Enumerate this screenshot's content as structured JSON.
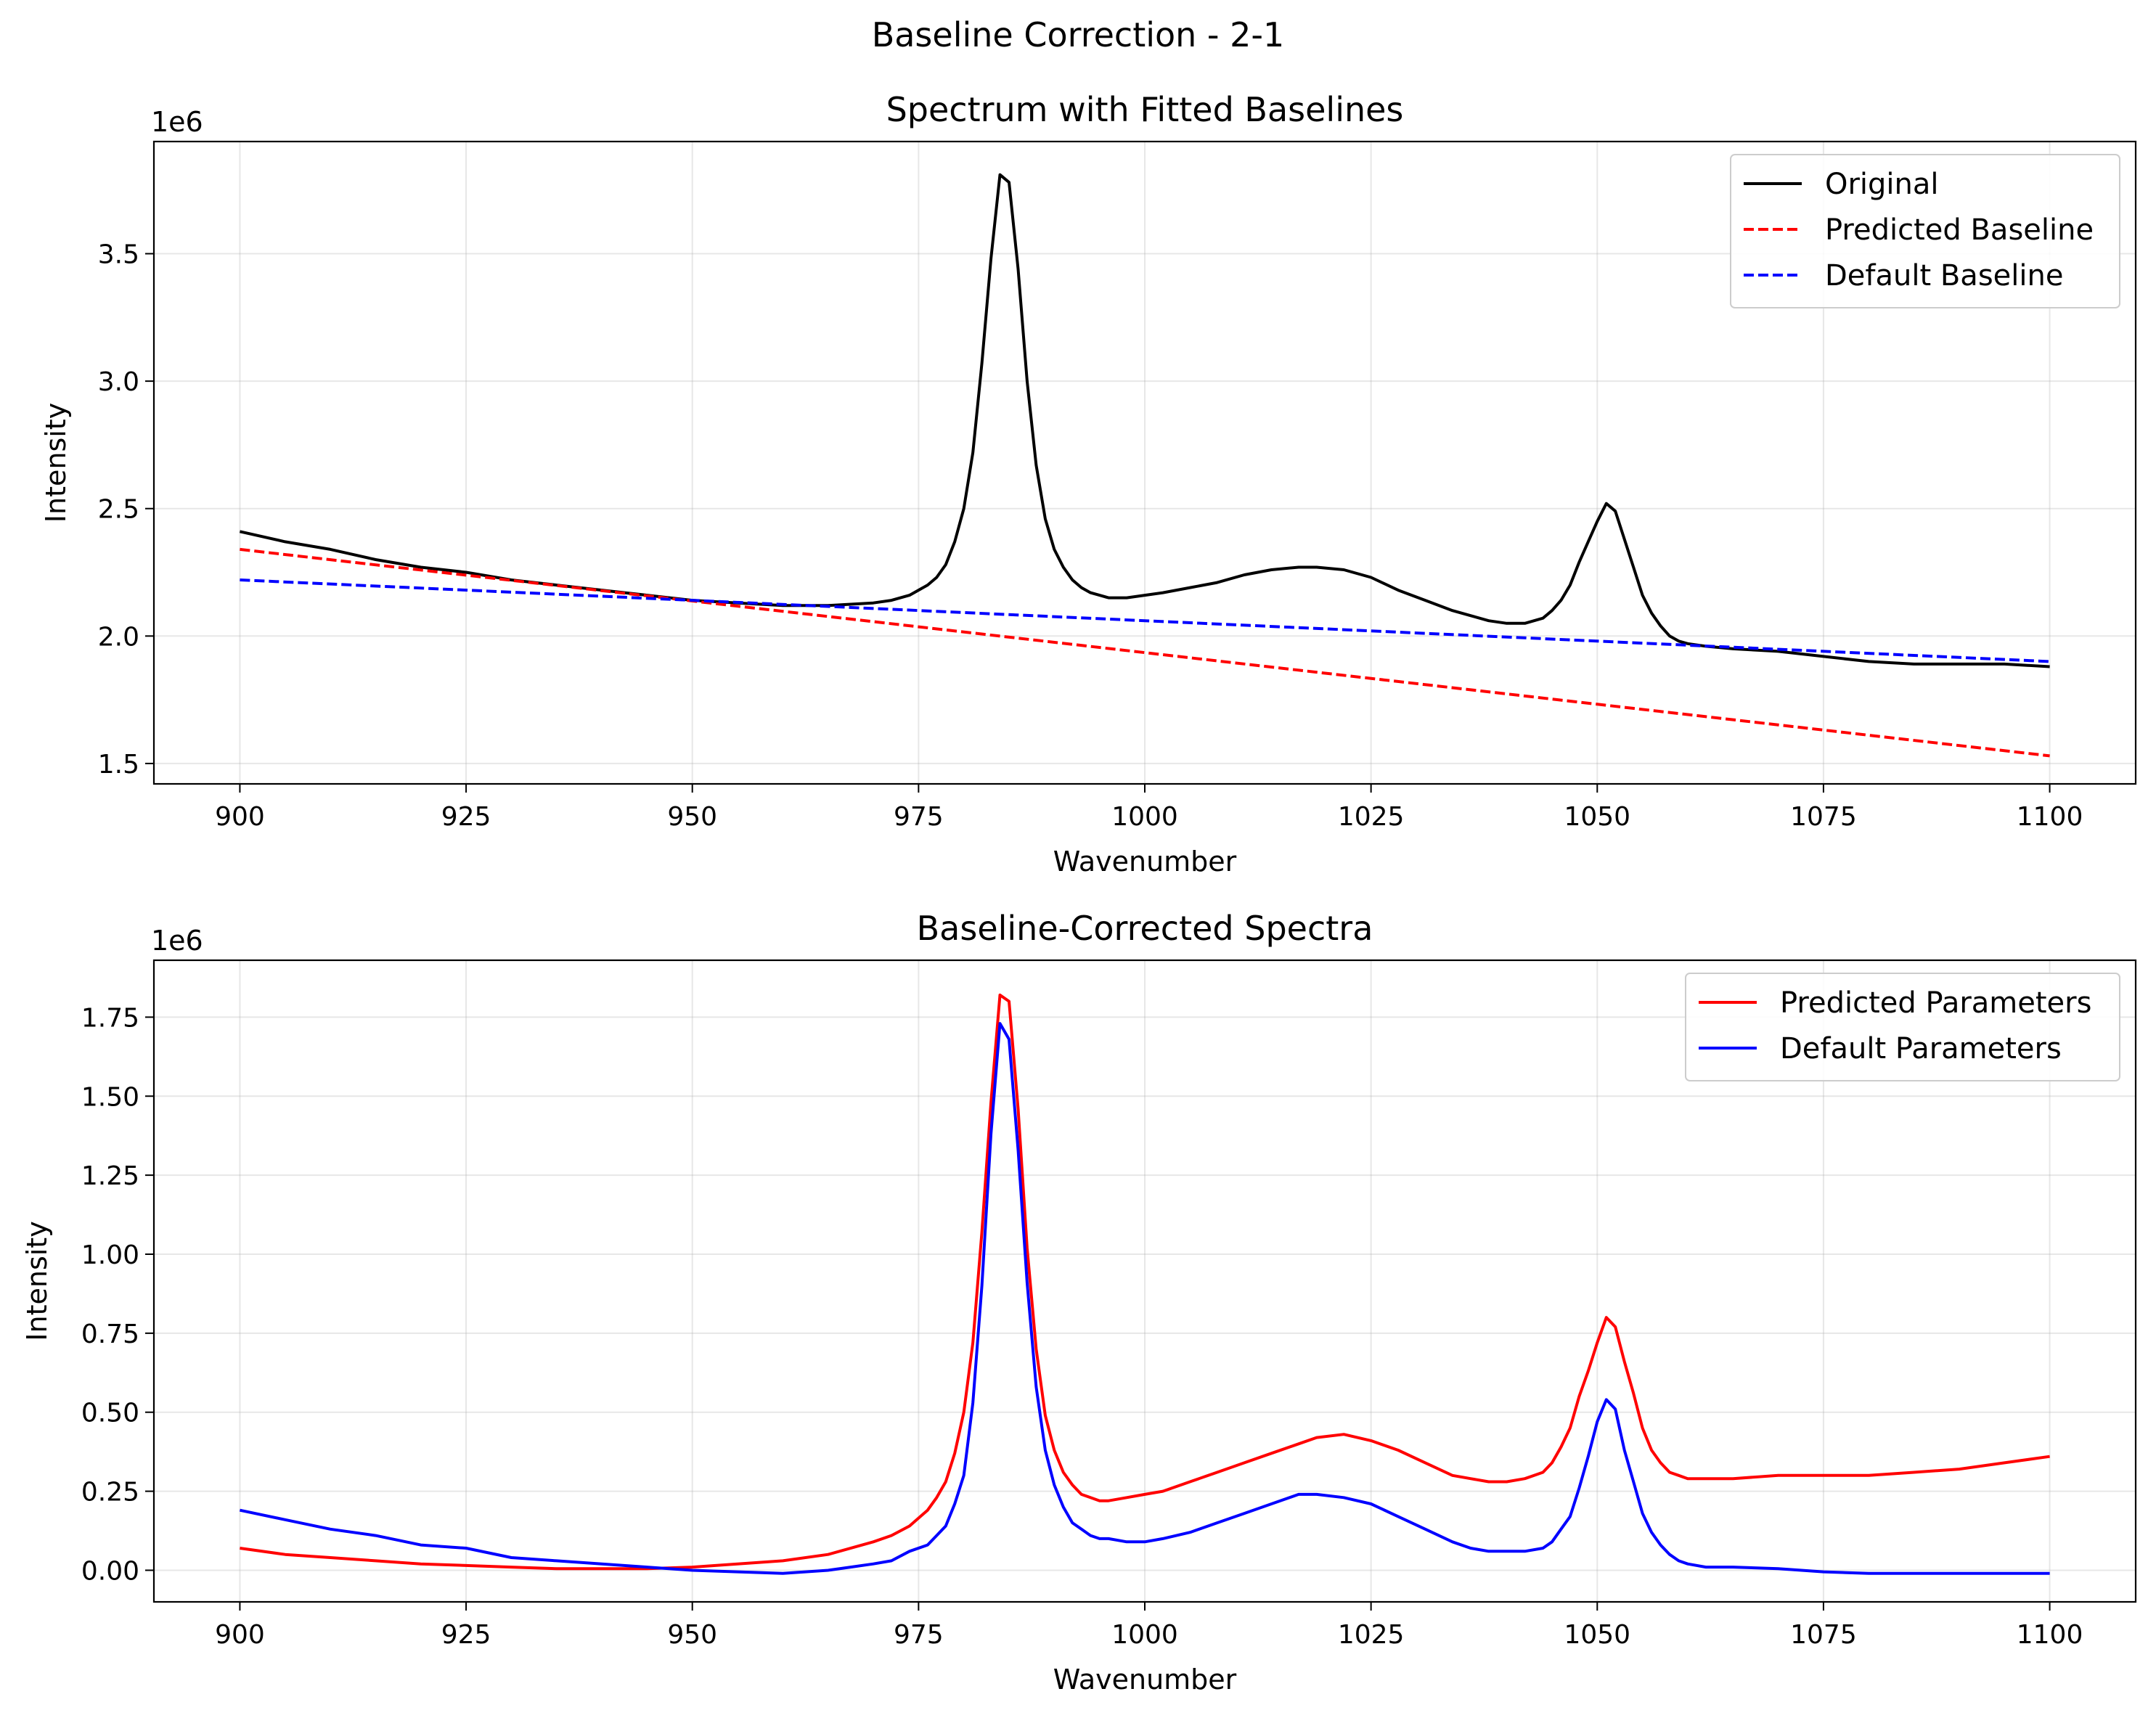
{
  "figure": {
    "suptitle": "Baseline Correction - 2-1"
  },
  "colors": {
    "original": "#000000",
    "predicted": "#ff0000",
    "default": "#0000ff"
  },
  "chart_data": [
    {
      "type": "line",
      "title": "Spectrum with Fitted Baselines",
      "xlabel": "Wavenumber",
      "ylabel": "Intensity",
      "y_offset_label": "1e6",
      "xlim": [
        890.5,
        1109.5
      ],
      "ylim": [
        1.42,
        3.94
      ],
      "x_ticks": [
        900,
        925,
        950,
        975,
        1000,
        1025,
        1050,
        1075,
        1100
      ],
      "y_ticks": [
        1.5,
        2.0,
        2.5,
        3.0,
        3.5
      ],
      "y_tick_labels": [
        "1.5",
        "2.0",
        "2.5",
        "3.0",
        "3.5"
      ],
      "grid": true,
      "legend_position": "top-right",
      "series": [
        {
          "name": "Original",
          "color": "#000000",
          "style": "solid",
          "x": [
            900,
            905,
            910,
            915,
            920,
            925,
            930,
            935,
            940,
            945,
            950,
            955,
            960,
            965,
            970,
            972,
            974,
            976,
            977,
            978,
            979,
            980,
            981,
            982,
            983,
            984,
            985,
            986,
            987,
            988,
            989,
            990,
            991,
            992,
            993,
            994,
            995,
            996,
            998,
            1000,
            1002,
            1005,
            1008,
            1011,
            1014,
            1017,
            1019,
            1022,
            1025,
            1028,
            1031,
            1034,
            1036,
            1038,
            1040,
            1042,
            1044,
            1045,
            1046,
            1047,
            1048,
            1049,
            1050,
            1051,
            1052,
            1053,
            1054,
            1055,
            1056,
            1057,
            1058,
            1059,
            1060,
            1062,
            1065,
            1070,
            1075,
            1080,
            1085,
            1090,
            1095,
            1100
          ],
          "y": [
            2.41,
            2.37,
            2.34,
            2.3,
            2.27,
            2.25,
            2.22,
            2.2,
            2.18,
            2.16,
            2.14,
            2.13,
            2.12,
            2.12,
            2.13,
            2.14,
            2.16,
            2.2,
            2.23,
            2.28,
            2.37,
            2.5,
            2.72,
            3.07,
            3.48,
            3.81,
            3.78,
            3.44,
            3.0,
            2.67,
            2.46,
            2.34,
            2.27,
            2.22,
            2.19,
            2.17,
            2.16,
            2.15,
            2.15,
            2.16,
            2.17,
            2.19,
            2.21,
            2.24,
            2.26,
            2.27,
            2.27,
            2.26,
            2.23,
            2.18,
            2.14,
            2.1,
            2.08,
            2.06,
            2.05,
            2.05,
            2.07,
            2.1,
            2.14,
            2.2,
            2.29,
            2.37,
            2.45,
            2.52,
            2.49,
            2.38,
            2.27,
            2.16,
            2.09,
            2.04,
            2.0,
            1.98,
            1.97,
            1.96,
            1.95,
            1.94,
            1.92,
            1.9,
            1.89,
            1.89,
            1.89,
            1.88
          ]
        },
        {
          "name": "Predicted Baseline",
          "color": "#ff0000",
          "style": "dashed",
          "x": [
            900,
            1100
          ],
          "y": [
            2.34,
            1.53
          ]
        },
        {
          "name": "Default Baseline",
          "color": "#0000ff",
          "style": "dashed",
          "x": [
            900,
            1100
          ],
          "y": [
            2.22,
            1.9
          ]
        }
      ]
    },
    {
      "type": "line",
      "title": "Baseline-Corrected Spectra",
      "xlabel": "Wavenumber",
      "ylabel": "Intensity",
      "y_offset_label": "1e6",
      "xlim": [
        890.5,
        1109.5
      ],
      "ylim": [
        -0.1,
        1.93
      ],
      "x_ticks": [
        900,
        925,
        950,
        975,
        1000,
        1025,
        1050,
        1075,
        1100
      ],
      "y_ticks": [
        0.0,
        0.25,
        0.5,
        0.75,
        1.0,
        1.25,
        1.5,
        1.75
      ],
      "y_tick_labels": [
        "0.00",
        "0.25",
        "0.50",
        "0.75",
        "1.00",
        "1.25",
        "1.50",
        "1.75"
      ],
      "grid": true,
      "legend_position": "top-right",
      "series": [
        {
          "name": "Predicted Parameters",
          "color": "#ff0000",
          "style": "solid",
          "x": [
            900,
            905,
            910,
            915,
            920,
            925,
            930,
            935,
            940,
            945,
            950,
            955,
            960,
            965,
            970,
            972,
            974,
            976,
            977,
            978,
            979,
            980,
            981,
            982,
            983,
            984,
            985,
            986,
            987,
            988,
            989,
            990,
            991,
            992,
            993,
            994,
            995,
            996,
            998,
            1000,
            1002,
            1005,
            1008,
            1011,
            1014,
            1017,
            1019,
            1022,
            1025,
            1028,
            1031,
            1034,
            1036,
            1038,
            1040,
            1042,
            1044,
            1045,
            1046,
            1047,
            1048,
            1049,
            1050,
            1051,
            1052,
            1053,
            1054,
            1055,
            1056,
            1057,
            1058,
            1059,
            1060,
            1062,
            1065,
            1070,
            1075,
            1080,
            1085,
            1090,
            1095,
            1100
          ],
          "y": [
            0.07,
            0.05,
            0.04,
            0.03,
            0.02,
            0.015,
            0.01,
            0.005,
            0.005,
            0.005,
            0.01,
            0.02,
            0.03,
            0.05,
            0.09,
            0.11,
            0.14,
            0.19,
            0.23,
            0.28,
            0.37,
            0.5,
            0.72,
            1.07,
            1.48,
            1.82,
            1.8,
            1.46,
            1.02,
            0.7,
            0.49,
            0.38,
            0.31,
            0.27,
            0.24,
            0.23,
            0.22,
            0.22,
            0.23,
            0.24,
            0.25,
            0.28,
            0.31,
            0.34,
            0.37,
            0.4,
            0.42,
            0.43,
            0.41,
            0.38,
            0.34,
            0.3,
            0.29,
            0.28,
            0.28,
            0.29,
            0.31,
            0.34,
            0.39,
            0.45,
            0.55,
            0.63,
            0.72,
            0.8,
            0.77,
            0.66,
            0.56,
            0.45,
            0.38,
            0.34,
            0.31,
            0.3,
            0.29,
            0.29,
            0.29,
            0.3,
            0.3,
            0.3,
            0.31,
            0.32,
            0.34,
            0.36
          ]
        },
        {
          "name": "Default Parameters",
          "color": "#0000ff",
          "style": "solid",
          "x": [
            900,
            905,
            910,
            915,
            920,
            925,
            930,
            935,
            940,
            945,
            950,
            955,
            960,
            965,
            970,
            972,
            974,
            976,
            977,
            978,
            979,
            980,
            981,
            982,
            983,
            984,
            985,
            986,
            987,
            988,
            989,
            990,
            991,
            992,
            993,
            994,
            995,
            996,
            998,
            1000,
            1002,
            1005,
            1008,
            1011,
            1014,
            1017,
            1019,
            1022,
            1025,
            1028,
            1031,
            1034,
            1036,
            1038,
            1040,
            1042,
            1044,
            1045,
            1046,
            1047,
            1048,
            1049,
            1050,
            1051,
            1052,
            1053,
            1054,
            1055,
            1056,
            1057,
            1058,
            1059,
            1060,
            1062,
            1065,
            1070,
            1075,
            1080,
            1085,
            1090,
            1095,
            1100
          ],
          "y": [
            0.19,
            0.16,
            0.13,
            0.11,
            0.08,
            0.07,
            0.04,
            0.03,
            0.02,
            0.01,
            0.0,
            -0.005,
            -0.01,
            0.0,
            0.02,
            0.03,
            0.06,
            0.08,
            0.11,
            0.14,
            0.21,
            0.3,
            0.53,
            0.9,
            1.38,
            1.73,
            1.68,
            1.33,
            0.91,
            0.58,
            0.38,
            0.27,
            0.2,
            0.15,
            0.13,
            0.11,
            0.1,
            0.1,
            0.09,
            0.09,
            0.1,
            0.12,
            0.15,
            0.18,
            0.21,
            0.24,
            0.24,
            0.23,
            0.21,
            0.17,
            0.13,
            0.09,
            0.07,
            0.06,
            0.06,
            0.06,
            0.07,
            0.09,
            0.13,
            0.17,
            0.26,
            0.36,
            0.47,
            0.54,
            0.51,
            0.38,
            0.28,
            0.18,
            0.12,
            0.08,
            0.05,
            0.03,
            0.02,
            0.01,
            0.01,
            0.005,
            -0.005,
            -0.01,
            -0.01,
            -0.01,
            -0.01,
            -0.01
          ]
        }
      ]
    }
  ]
}
